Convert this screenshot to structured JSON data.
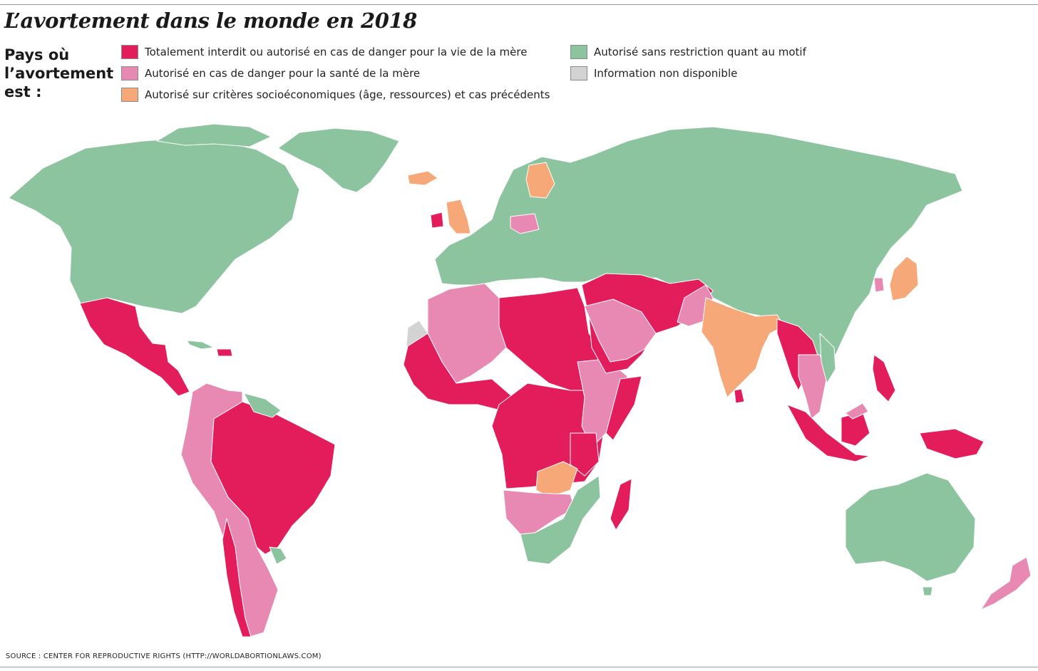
{
  "title": "L’avortement dans le monde en 2018",
  "legend": {
    "heading_lines": [
      "Pays où",
      "l’avortement",
      "est :"
    ],
    "items": [
      {
        "label": "Totalement interdit ou autorisé en cas de danger pour la vie de la mère",
        "color": "#e31d5c"
      },
      {
        "label": "Autorisé en cas de danger pour la santé de la mère",
        "color": "#e889b4"
      },
      {
        "label": "Autorisé sur critères socioéconomiques (âge, ressources) et cas précédents",
        "color": "#f7a878"
      },
      {
        "label": "Autorisé sans restriction quant au motif",
        "color": "#8cc49f"
      },
      {
        "label": "Information non disponible",
        "color": "#d3d3d3"
      }
    ]
  },
  "source": "SOURCE : CENTER FOR REPRODUCTIVE RIGHTS (HTTP://WORLDABORTIONLAWS.COM)"
}
